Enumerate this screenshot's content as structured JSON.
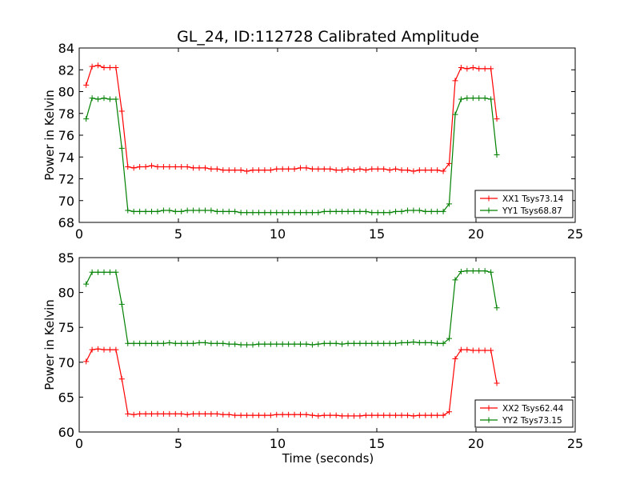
{
  "chart_data": [
    {
      "type": "line",
      "title": "GL_24, ID:112728 Calibrated Amplitude",
      "xlabel": "",
      "ylabel": "Power in Kelvin",
      "xlim": [
        0,
        25
      ],
      "ylim": [
        68,
        84
      ],
      "xticks": [
        "0",
        "5",
        "10",
        "15",
        "20",
        "25"
      ],
      "yticks": [
        "68",
        "70",
        "72",
        "74",
        "76",
        "78",
        "80",
        "82",
        "84"
      ],
      "legend_position": "lower-right",
      "series": [
        {
          "name": "XX1 Tsys73.14",
          "color": "#ff0000",
          "x": [
            0.35,
            0.65,
            0.95,
            1.25,
            1.55,
            1.85,
            2.15,
            2.45,
            2.75,
            3.05,
            3.35,
            3.65,
            3.95,
            4.25,
            4.55,
            4.85,
            5.15,
            5.45,
            5.75,
            6.05,
            6.35,
            6.65,
            6.95,
            7.25,
            7.55,
            7.85,
            8.15,
            8.45,
            8.75,
            9.05,
            9.35,
            9.65,
            9.95,
            10.25,
            10.55,
            10.85,
            11.15,
            11.45,
            11.75,
            12.05,
            12.35,
            12.65,
            12.95,
            13.25,
            13.55,
            13.85,
            14.15,
            14.45,
            14.75,
            15.05,
            15.35,
            15.65,
            15.95,
            16.25,
            16.55,
            16.85,
            17.15,
            17.45,
            17.75,
            18.05,
            18.35,
            18.65,
            18.95,
            19.25,
            19.55,
            19.85,
            20.15,
            20.45,
            20.75,
            21.05
          ],
          "y": [
            80.6,
            82.3,
            82.4,
            82.2,
            82.2,
            82.2,
            78.2,
            73.1,
            73.0,
            73.1,
            73.1,
            73.2,
            73.1,
            73.1,
            73.1,
            73.1,
            73.1,
            73.1,
            73.0,
            73.0,
            73.0,
            72.9,
            72.9,
            72.8,
            72.8,
            72.8,
            72.8,
            72.7,
            72.8,
            72.8,
            72.8,
            72.8,
            72.9,
            72.9,
            72.9,
            72.9,
            73.0,
            73.0,
            72.9,
            72.9,
            72.9,
            72.9,
            72.8,
            72.8,
            72.9,
            72.8,
            72.9,
            72.8,
            72.9,
            72.9,
            72.9,
            72.8,
            72.9,
            72.8,
            72.8,
            72.7,
            72.8,
            72.8,
            72.8,
            72.8,
            72.7,
            73.4,
            81.0,
            82.2,
            82.1,
            82.2,
            82.1,
            82.1,
            82.1,
            77.5
          ]
        },
        {
          "name": "YY1 Tsys68.87",
          "color": "#008000",
          "x": [
            0.35,
            0.65,
            0.95,
            1.25,
            1.55,
            1.85,
            2.15,
            2.45,
            2.75,
            3.05,
            3.35,
            3.65,
            3.95,
            4.25,
            4.55,
            4.85,
            5.15,
            5.45,
            5.75,
            6.05,
            6.35,
            6.65,
            6.95,
            7.25,
            7.55,
            7.85,
            8.15,
            8.45,
            8.75,
            9.05,
            9.35,
            9.65,
            9.95,
            10.25,
            10.55,
            10.85,
            11.15,
            11.45,
            11.75,
            12.05,
            12.35,
            12.65,
            12.95,
            13.25,
            13.55,
            13.85,
            14.15,
            14.45,
            14.75,
            15.05,
            15.35,
            15.65,
            15.95,
            16.25,
            16.55,
            16.85,
            17.15,
            17.45,
            17.75,
            18.05,
            18.35,
            18.65,
            18.95,
            19.25,
            19.55,
            19.85,
            20.15,
            20.45,
            20.75,
            21.05
          ],
          "y": [
            77.5,
            79.4,
            79.3,
            79.4,
            79.3,
            79.3,
            74.8,
            69.1,
            69.0,
            69.0,
            69.0,
            69.0,
            69.0,
            69.1,
            69.1,
            69.0,
            69.0,
            69.1,
            69.1,
            69.1,
            69.1,
            69.1,
            69.0,
            69.0,
            69.0,
            69.0,
            68.9,
            68.9,
            68.9,
            68.9,
            68.9,
            68.9,
            68.9,
            68.9,
            68.9,
            68.9,
            68.9,
            68.9,
            68.9,
            68.9,
            69.0,
            69.0,
            69.0,
            69.0,
            69.0,
            69.0,
            69.0,
            69.0,
            68.9,
            68.9,
            68.9,
            68.9,
            69.0,
            69.0,
            69.1,
            69.1,
            69.1,
            69.0,
            69.0,
            69.0,
            69.0,
            69.7,
            77.9,
            79.3,
            79.4,
            79.4,
            79.4,
            79.4,
            79.3,
            74.2
          ]
        }
      ]
    },
    {
      "type": "line",
      "title": "",
      "xlabel": "Time (seconds)",
      "ylabel": "Power in Kelvin",
      "xlim": [
        0,
        25
      ],
      "ylim": [
        60,
        85
      ],
      "xticks": [
        "0",
        "5",
        "10",
        "15",
        "20",
        "25"
      ],
      "yticks": [
        "60",
        "65",
        "70",
        "75",
        "80",
        "85"
      ],
      "legend_position": "lower-right",
      "series": [
        {
          "name": "XX2 Tsys62.44",
          "color": "#ff0000",
          "x": [
            0.35,
            0.65,
            0.95,
            1.25,
            1.55,
            1.85,
            2.15,
            2.45,
            2.75,
            3.05,
            3.35,
            3.65,
            3.95,
            4.25,
            4.55,
            4.85,
            5.15,
            5.45,
            5.75,
            6.05,
            6.35,
            6.65,
            6.95,
            7.25,
            7.55,
            7.85,
            8.15,
            8.45,
            8.75,
            9.05,
            9.35,
            9.65,
            9.95,
            10.25,
            10.55,
            10.85,
            11.15,
            11.45,
            11.75,
            12.05,
            12.35,
            12.65,
            12.95,
            13.25,
            13.55,
            13.85,
            14.15,
            14.45,
            14.75,
            15.05,
            15.35,
            15.65,
            15.95,
            16.25,
            16.55,
            16.85,
            17.15,
            17.45,
            17.75,
            18.05,
            18.35,
            18.65,
            18.95,
            19.25,
            19.55,
            19.85,
            20.15,
            20.45,
            20.75,
            21.05
          ],
          "y": [
            70.1,
            71.8,
            71.9,
            71.8,
            71.8,
            71.8,
            67.6,
            62.6,
            62.5,
            62.6,
            62.6,
            62.6,
            62.6,
            62.6,
            62.6,
            62.6,
            62.6,
            62.5,
            62.6,
            62.6,
            62.6,
            62.6,
            62.6,
            62.5,
            62.5,
            62.4,
            62.4,
            62.4,
            62.4,
            62.4,
            62.4,
            62.4,
            62.5,
            62.5,
            62.5,
            62.5,
            62.5,
            62.5,
            62.4,
            62.3,
            62.4,
            62.4,
            62.4,
            62.3,
            62.3,
            62.3,
            62.3,
            62.4,
            62.4,
            62.4,
            62.4,
            62.4,
            62.4,
            62.4,
            62.4,
            62.3,
            62.4,
            62.4,
            62.4,
            62.4,
            62.4,
            62.9,
            70.5,
            71.8,
            71.8,
            71.7,
            71.7,
            71.7,
            71.7,
            67.0
          ]
        },
        {
          "name": "YY2 Tsys73.15",
          "color": "#008000",
          "x": [
            0.35,
            0.65,
            0.95,
            1.25,
            1.55,
            1.85,
            2.15,
            2.45,
            2.75,
            3.05,
            3.35,
            3.65,
            3.95,
            4.25,
            4.55,
            4.85,
            5.15,
            5.45,
            5.75,
            6.05,
            6.35,
            6.65,
            6.95,
            7.25,
            7.55,
            7.85,
            8.15,
            8.45,
            8.75,
            9.05,
            9.35,
            9.65,
            9.95,
            10.25,
            10.55,
            10.85,
            11.15,
            11.45,
            11.75,
            12.05,
            12.35,
            12.65,
            12.95,
            13.25,
            13.55,
            13.85,
            14.15,
            14.45,
            14.75,
            15.05,
            15.35,
            15.65,
            15.95,
            16.25,
            16.55,
            16.85,
            17.15,
            17.45,
            17.75,
            18.05,
            18.35,
            18.65,
            18.95,
            19.25,
            19.55,
            19.85,
            20.15,
            20.45,
            20.75,
            21.05
          ],
          "y": [
            81.2,
            82.9,
            82.9,
            82.9,
            82.9,
            82.9,
            78.3,
            72.7,
            72.7,
            72.7,
            72.7,
            72.7,
            72.7,
            72.7,
            72.8,
            72.7,
            72.7,
            72.7,
            72.7,
            72.8,
            72.8,
            72.7,
            72.7,
            72.7,
            72.6,
            72.6,
            72.5,
            72.5,
            72.5,
            72.6,
            72.6,
            72.6,
            72.6,
            72.6,
            72.6,
            72.6,
            72.6,
            72.6,
            72.5,
            72.6,
            72.7,
            72.7,
            72.7,
            72.6,
            72.7,
            72.7,
            72.7,
            72.7,
            72.7,
            72.7,
            72.7,
            72.7,
            72.7,
            72.8,
            72.8,
            72.9,
            72.8,
            72.8,
            72.8,
            72.7,
            72.7,
            73.4,
            81.8,
            83.0,
            83.1,
            83.1,
            83.1,
            83.1,
            82.9,
            77.8
          ]
        }
      ]
    }
  ]
}
